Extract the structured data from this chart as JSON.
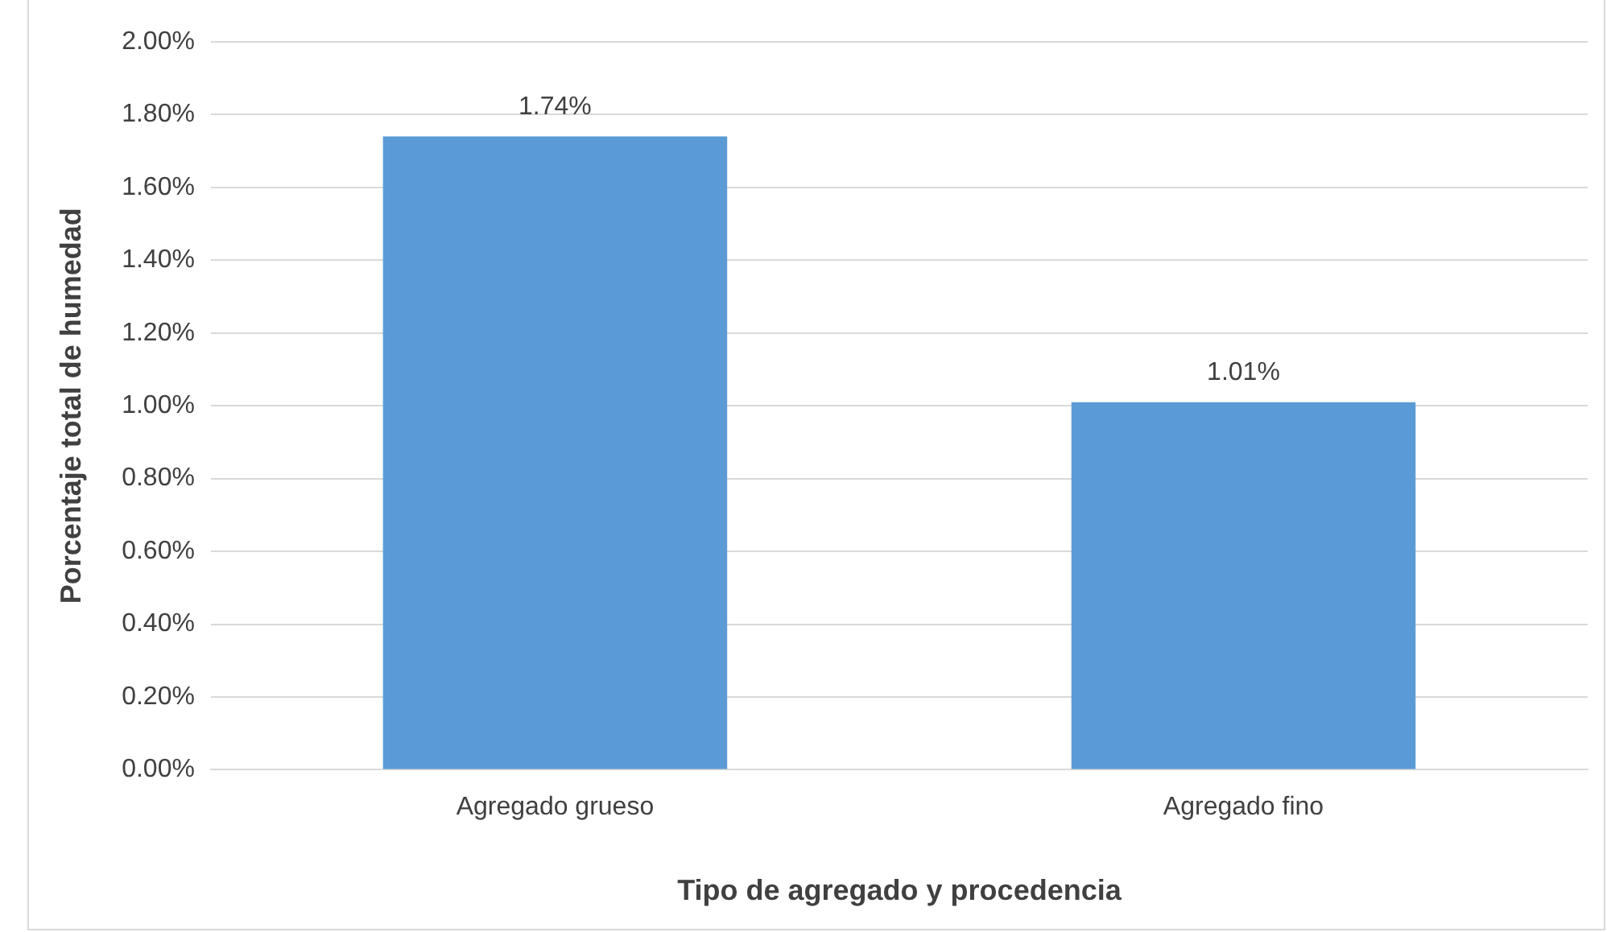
{
  "chart_data": {
    "type": "bar",
    "xlabel": "Tipo de agregado y procedencia",
    "ylabel": "Porcentaje total de humedad",
    "categories": [
      "Agregado grueso",
      "Agregado fino"
    ],
    "values": [
      1.74,
      1.01
    ],
    "color": "#5b9bd5",
    "value_labels": [
      "1.74%",
      "1.01%"
    ],
    "ylim": [
      0,
      2
    ],
    "yticks": [
      {
        "value": 0,
        "label": "0.00%"
      },
      {
        "value": 0.2,
        "label": "0.20%"
      },
      {
        "value": 0.4,
        "label": "0.40%"
      },
      {
        "value": 0.6,
        "label": "0.60%"
      },
      {
        "value": 0.8,
        "label": "0.80%"
      },
      {
        "value": 1,
        "label": "1.00%"
      },
      {
        "value": 1.2,
        "label": "1.20%"
      },
      {
        "value": 1.4,
        "label": "1.40%"
      },
      {
        "value": 1.6,
        "label": "1.60%"
      },
      {
        "value": 1.8,
        "label": "1.80%"
      },
      {
        "value": 2,
        "label": "2.00%"
      }
    ],
    "grid": "y",
    "legend": false
  }
}
